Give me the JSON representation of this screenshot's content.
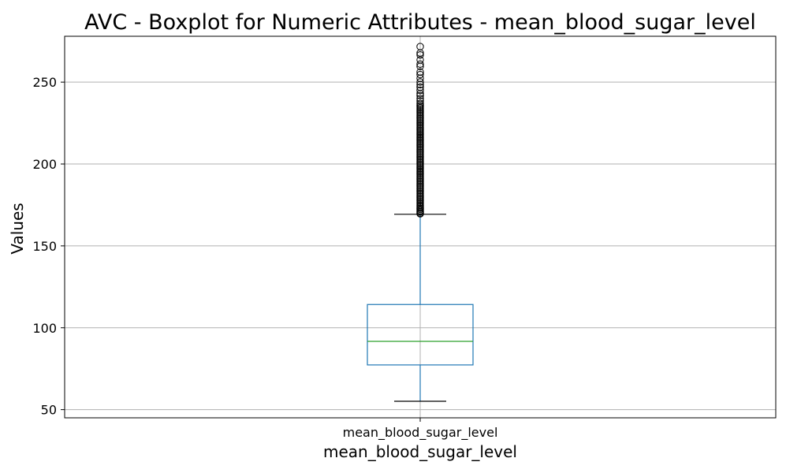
{
  "chart_data": {
    "type": "boxplot",
    "title": "AVC - Boxplot for Numeric Attributes - mean_blood_sugar_level",
    "xlabel": "mean_blood_sugar_level",
    "ylabel": "Values",
    "categories": [
      "mean_blood_sugar_level"
    ],
    "ylim": [
      45,
      278
    ],
    "yticks": [
      50,
      100,
      150,
      200,
      250
    ],
    "grid": true,
    "box": {
      "whisker_low": 55.1,
      "q1": 77.3,
      "median": 91.7,
      "q3": 114.2,
      "whisker_high": 169.3
    },
    "outliers": [
      169.6,
      170.1,
      170.8,
      171.5,
      172.3,
      173.0,
      173.9,
      174.8,
      175.7,
      176.6,
      177.5,
      178.4,
      179.3,
      180.2,
      181.1,
      182.0,
      182.9,
      183.8,
      184.7,
      185.6,
      186.5,
      187.4,
      188.3,
      189.2,
      190.1,
      191.0,
      191.9,
      192.8,
      193.7,
      194.6,
      195.5,
      196.4,
      197.3,
      198.2,
      199.1,
      200.0,
      200.9,
      201.8,
      202.7,
      203.6,
      204.5,
      205.4,
      206.3,
      207.2,
      208.1,
      209.0,
      209.9,
      210.8,
      211.7,
      212.6,
      213.5,
      214.4,
      215.3,
      216.2,
      217.1,
      218.0,
      218.9,
      219.8,
      220.7,
      221.6,
      222.5,
      223.4,
      224.3,
      225.2,
      226.1,
      227.0,
      227.9,
      228.8,
      229.7,
      230.6,
      231.5,
      232.4,
      233.3,
      234.2,
      235.1,
      236.0,
      237.0,
      238.5,
      240.0,
      241.8,
      243.0,
      245.0,
      246.9,
      248.5,
      250.1,
      252.3,
      254.6,
      256.2,
      259.6,
      261.0,
      263.6,
      266.6,
      267.8,
      271.7
    ],
    "colors": {
      "box": "#1f77b4",
      "median": "#2ca02c",
      "whisker_cap": "#000000",
      "outlier_edge": "#000000",
      "grid": "#b0b0b0"
    }
  }
}
